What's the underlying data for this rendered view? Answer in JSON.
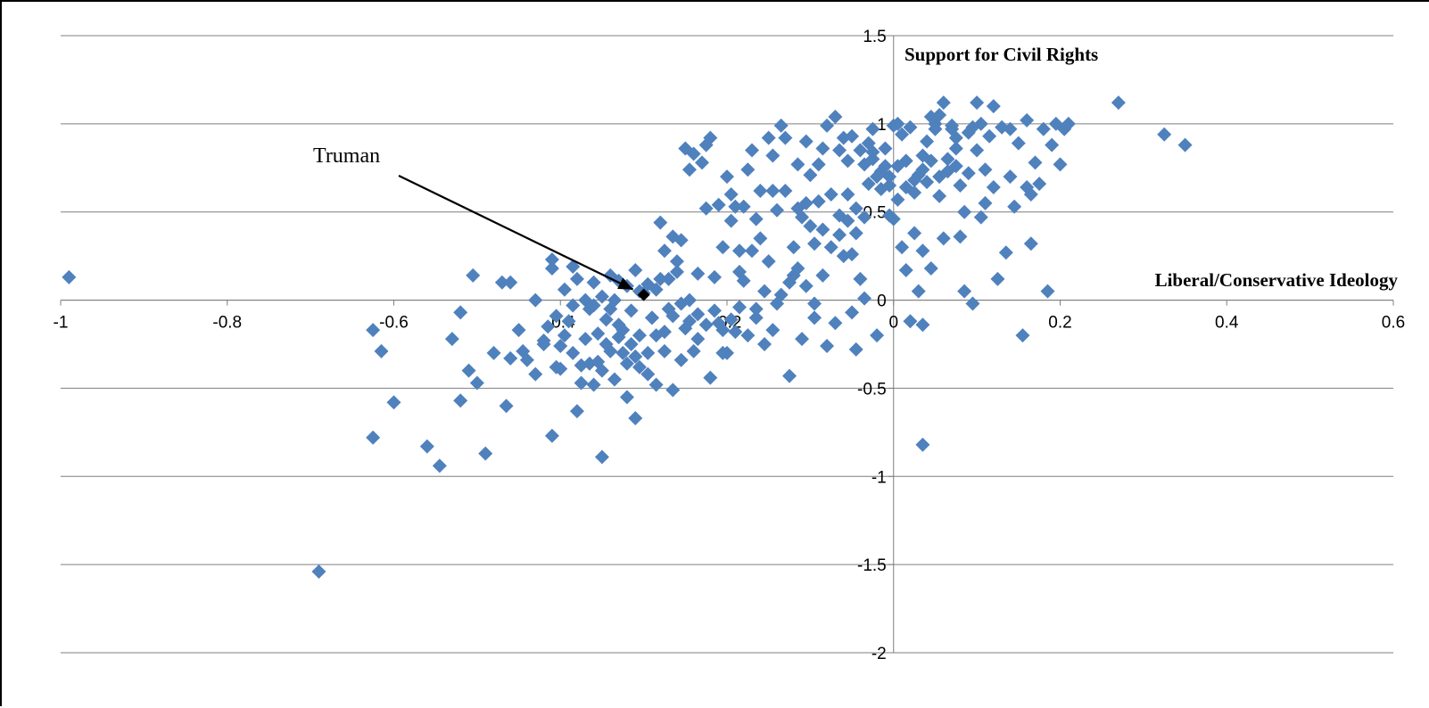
{
  "chart_data": {
    "type": "scatter",
    "title": "",
    "xlabel": "Liberal/Conservative Ideology",
    "ylabel": "Support for Civil Rights",
    "xlim": [
      -1,
      0.6
    ],
    "ylim": [
      -2,
      1.5
    ],
    "x_ticks": [
      "-1",
      "-0.8",
      "-0.6",
      "-0.4",
      "-0.2",
      "0",
      "0.2",
      "0.4",
      "0.6"
    ],
    "y_ticks": [
      "1.5",
      "1",
      "0.5",
      "0",
      "-0.5",
      "-1",
      "-1.5",
      "-2"
    ],
    "grid": "horizontal",
    "colors": {
      "points": "#4f81bd",
      "highlight": "#000000"
    },
    "highlight": {
      "label": "Truman",
      "x": -0.3,
      "y": 0.03
    },
    "points": [
      [
        -0.99,
        0.13
      ],
      [
        -0.69,
        -1.54
      ],
      [
        -0.625,
        -0.78
      ],
      [
        -0.625,
        -0.17
      ],
      [
        -0.615,
        -0.29
      ],
      [
        -0.6,
        -0.58
      ],
      [
        -0.56,
        -0.83
      ],
      [
        -0.545,
        -0.94
      ],
      [
        -0.53,
        -0.22
      ],
      [
        -0.52,
        -0.57
      ],
      [
        -0.52,
        -0.07
      ],
      [
        -0.505,
        0.14
      ],
      [
        -0.51,
        -0.4
      ],
      [
        -0.5,
        -0.47
      ],
      [
        -0.49,
        -0.87
      ],
      [
        -0.465,
        -0.6
      ],
      [
        -0.46,
        -0.33
      ],
      [
        -0.445,
        -0.29
      ],
      [
        -0.43,
        -0.42
      ],
      [
        -0.42,
        -0.23
      ],
      [
        -0.41,
        -0.77
      ],
      [
        -0.41,
        0.23
      ],
      [
        -0.405,
        -0.38
      ],
      [
        -0.4,
        -0.39
      ],
      [
        -0.385,
        0.19
      ],
      [
        -0.38,
        -0.63
      ],
      [
        -0.375,
        -0.47
      ],
      [
        -0.37,
        -0.22
      ],
      [
        -0.365,
        -0.05
      ],
      [
        -0.36,
        0.1
      ],
      [
        -0.355,
        -0.35
      ],
      [
        -0.35,
        -0.89
      ],
      [
        -0.345,
        -0.25
      ],
      [
        -0.34,
        0.14
      ],
      [
        -0.335,
        0.0
      ],
      [
        -0.33,
        -0.14
      ],
      [
        -0.325,
        -0.3
      ],
      [
        -0.32,
        -0.36
      ],
      [
        -0.31,
        -0.67
      ],
      [
        -0.305,
        -0.2
      ],
      [
        -0.3,
        0.04
      ],
      [
        -0.295,
        -0.42
      ],
      [
        -0.29,
        -0.1
      ],
      [
        -0.285,
        -0.48
      ],
      [
        -0.28,
        0.12
      ],
      [
        -0.275,
        -0.29
      ],
      [
        -0.27,
        -0.05
      ],
      [
        -0.265,
        -0.51
      ],
      [
        -0.26,
        0.16
      ],
      [
        -0.255,
        -0.34
      ],
      [
        -0.25,
        -0.16
      ],
      [
        -0.245,
        0.0
      ],
      [
        -0.24,
        -0.29
      ],
      [
        -0.235,
        -0.08
      ],
      [
        -0.23,
        0.78
      ],
      [
        -0.225,
        0.88
      ],
      [
        -0.22,
        -0.44
      ],
      [
        -0.215,
        0.13
      ],
      [
        -0.21,
        -0.13
      ],
      [
        -0.205,
        -0.3
      ],
      [
        -0.2,
        -0.3
      ],
      [
        -0.195,
        0.45
      ],
      [
        -0.19,
        -0.18
      ],
      [
        -0.185,
        0.28
      ],
      [
        -0.18,
        0.11
      ],
      [
        -0.175,
        0.74
      ],
      [
        -0.17,
        0.85
      ],
      [
        -0.165,
        -0.05
      ],
      [
        -0.16,
        0.35
      ],
      [
        -0.155,
        -0.25
      ],
      [
        -0.15,
        0.22
      ],
      [
        -0.145,
        0.82
      ],
      [
        -0.14,
        -0.02
      ],
      [
        -0.13,
        0.92
      ],
      [
        -0.125,
        -0.43
      ],
      [
        -0.12,
        0.14
      ],
      [
        -0.115,
        0.52
      ],
      [
        -0.11,
        -0.22
      ],
      [
        -0.105,
        0.55
      ],
      [
        -0.1,
        0.71
      ],
      [
        -0.095,
        -0.02
      ],
      [
        -0.09,
        0.56
      ],
      [
        -0.085,
        0.14
      ],
      [
        -0.08,
        -0.26
      ],
      [
        -0.075,
        0.3
      ],
      [
        -0.07,
        1.04
      ],
      [
        -0.065,
        0.48
      ],
      [
        -0.06,
        0.92
      ],
      [
        -0.055,
        0.6
      ],
      [
        -0.05,
        0.26
      ],
      [
        -0.045,
        -0.28
      ],
      [
        -0.04,
        0.85
      ],
      [
        -0.035,
        0.01
      ],
      [
        -0.03,
        0.66
      ],
      [
        -0.025,
        0.97
      ],
      [
        -0.02,
        -0.2
      ],
      [
        -0.015,
        0.63
      ],
      [
        -0.01,
        0.76
      ],
      [
        -0.005,
        0.48
      ],
      [
        0.0,
        0.99
      ],
      [
        0.005,
        0.57
      ],
      [
        0.01,
        0.3
      ],
      [
        0.015,
        0.17
      ],
      [
        0.02,
        0.98
      ],
      [
        0.025,
        0.61
      ],
      [
        0.03,
        0.05
      ],
      [
        0.035,
        0.82
      ],
      [
        0.04,
        0.9
      ],
      [
        0.045,
        0.18
      ],
      [
        0.05,
        1.0
      ],
      [
        0.055,
        0.59
      ],
      [
        0.06,
        0.35
      ],
      [
        0.065,
        0.73
      ],
      [
        0.07,
        0.99
      ],
      [
        0.075,
        0.86
      ],
      [
        0.08,
        0.65
      ],
      [
        0.085,
        0.05
      ],
      [
        0.09,
        0.95
      ],
      [
        0.095,
        -0.02
      ],
      [
        0.1,
        0.85
      ],
      [
        0.105,
        0.47
      ],
      [
        0.11,
        0.74
      ],
      [
        0.115,
        0.93
      ],
      [
        0.12,
        0.64
      ],
      [
        0.125,
        0.12
      ],
      [
        0.13,
        0.98
      ],
      [
        0.135,
        0.27
      ],
      [
        0.14,
        0.7
      ],
      [
        0.145,
        0.53
      ],
      [
        0.15,
        0.89
      ],
      [
        0.155,
        -0.2
      ],
      [
        0.16,
        1.02
      ],
      [
        0.165,
        0.6
      ],
      [
        0.17,
        0.78
      ],
      [
        0.175,
        0.66
      ],
      [
        0.18,
        0.97
      ],
      [
        0.185,
        0.05
      ],
      [
        0.19,
        0.88
      ],
      [
        0.195,
        1.0
      ],
      [
        0.2,
        0.77
      ],
      [
        0.205,
        0.97
      ],
      [
        0.21,
        1.0
      ],
      [
        0.27,
        1.12
      ],
      [
        0.325,
        0.94
      ],
      [
        0.35,
        0.88
      ],
      [
        0.165,
        0.32
      ],
      [
        0.16,
        0.64
      ],
      [
        0.14,
        0.97
      ],
      [
        0.12,
        1.1
      ],
      [
        0.11,
        0.55
      ],
      [
        0.105,
        1.0
      ],
      [
        0.1,
        1.12
      ],
      [
        0.095,
        0.98
      ],
      [
        0.09,
        0.72
      ],
      [
        0.085,
        0.5
      ],
      [
        0.08,
        0.36
      ],
      [
        0.075,
        0.92
      ],
      [
        0.07,
        0.97
      ],
      [
        0.06,
        1.12
      ],
      [
        0.055,
        1.05
      ],
      [
        0.05,
        0.97
      ],
      [
        0.045,
        1.04
      ],
      [
        0.04,
        0.67
      ],
      [
        0.035,
        0.28
      ],
      [
        0.03,
        0.71
      ],
      [
        0.025,
        0.38
      ],
      [
        0.02,
        -0.12
      ],
      [
        0.015,
        0.64
      ],
      [
        0.01,
        0.94
      ],
      [
        0.005,
        1.0
      ],
      [
        0.0,
        0.46
      ],
      [
        -0.005,
        0.65
      ],
      [
        -0.01,
        0.86
      ],
      [
        -0.02,
        0.7
      ],
      [
        -0.025,
        0.8
      ],
      [
        -0.03,
        0.89
      ],
      [
        -0.035,
        0.47
      ],
      [
        -0.04,
        0.12
      ],
      [
        -0.045,
        0.38
      ],
      [
        -0.05,
        0.93
      ],
      [
        -0.055,
        0.79
      ],
      [
        -0.06,
        0.25
      ],
      [
        -0.065,
        0.85
      ],
      [
        -0.075,
        0.6
      ],
      [
        -0.08,
        0.99
      ],
      [
        -0.085,
        0.86
      ],
      [
        -0.09,
        0.77
      ],
      [
        -0.095,
        0.32
      ],
      [
        -0.1,
        0.42
      ],
      [
        -0.105,
        0.9
      ],
      [
        -0.11,
        0.47
      ],
      [
        -0.115,
        0.77
      ],
      [
        -0.12,
        0.3
      ],
      [
        -0.13,
        0.62
      ],
      [
        -0.135,
        0.99
      ],
      [
        -0.14,
        0.51
      ],
      [
        -0.145,
        0.62
      ],
      [
        -0.15,
        0.92
      ],
      [
        -0.16,
        0.62
      ],
      [
        -0.165,
        0.46
      ],
      [
        -0.17,
        0.28
      ],
      [
        -0.18,
        0.53
      ],
      [
        -0.185,
        0.16
      ],
      [
        -0.19,
        0.53
      ],
      [
        -0.195,
        0.6
      ],
      [
        -0.2,
        0.7
      ],
      [
        -0.205,
        0.3
      ],
      [
        -0.21,
        0.54
      ],
      [
        -0.22,
        0.92
      ],
      [
        -0.225,
        0.52
      ],
      [
        -0.235,
        0.15
      ],
      [
        -0.24,
        0.83
      ],
      [
        -0.245,
        0.74
      ],
      [
        -0.25,
        0.86
      ],
      [
        -0.255,
        0.34
      ],
      [
        -0.26,
        0.22
      ],
      [
        -0.265,
        0.36
      ],
      [
        -0.27,
        0.12
      ],
      [
        -0.275,
        0.28
      ],
      [
        -0.28,
        0.44
      ],
      [
        -0.285,
        0.06
      ],
      [
        -0.29,
        -0.1
      ],
      [
        -0.295,
        0.09
      ],
      [
        -0.305,
        0.05
      ],
      [
        -0.31,
        0.17
      ],
      [
        -0.315,
        -0.06
      ],
      [
        -0.32,
        0.08
      ],
      [
        -0.325,
        -0.17
      ],
      [
        -0.33,
        0.11
      ],
      [
        -0.34,
        -0.05
      ],
      [
        -0.345,
        -0.11
      ],
      [
        -0.35,
        0.02
      ],
      [
        -0.355,
        -0.19
      ],
      [
        -0.36,
        -0.03
      ],
      [
        -0.365,
        -0.36
      ],
      [
        -0.37,
        0.0
      ],
      [
        -0.375,
        -0.37
      ],
      [
        -0.38,
        0.12
      ],
      [
        -0.385,
        -0.03
      ],
      [
        -0.39,
        -0.12
      ],
      [
        -0.395,
        0.06
      ],
      [
        -0.4,
        -0.26
      ],
      [
        -0.405,
        -0.09
      ],
      [
        -0.41,
        0.18
      ],
      [
        -0.415,
        -0.15
      ],
      [
        -0.42,
        -0.25
      ],
      [
        -0.43,
        0.0
      ],
      [
        -0.44,
        -0.34
      ],
      [
        -0.45,
        -0.17
      ],
      [
        -0.46,
        0.1
      ],
      [
        -0.47,
        0.1
      ],
      [
        -0.48,
        -0.3
      ],
      [
        -0.385,
        -0.3
      ],
      [
        -0.395,
        -0.2
      ],
      [
        -0.335,
        -0.45
      ],
      [
        -0.315,
        -0.25
      ],
      [
        -0.305,
        -0.38
      ],
      [
        -0.295,
        -0.3
      ],
      [
        -0.285,
        -0.2
      ],
      [
        -0.275,
        -0.18
      ],
      [
        -0.265,
        -0.09
      ],
      [
        -0.255,
        -0.02
      ],
      [
        -0.245,
        -0.12
      ],
      [
        -0.235,
        -0.22
      ],
      [
        -0.225,
        -0.14
      ],
      [
        -0.215,
        -0.06
      ],
      [
        -0.205,
        -0.17
      ],
      [
        -0.195,
        -0.11
      ],
      [
        -0.185,
        -0.04
      ],
      [
        -0.175,
        -0.2
      ],
      [
        -0.165,
        -0.1
      ],
      [
        -0.155,
        0.05
      ],
      [
        -0.145,
        -0.17
      ],
      [
        -0.135,
        0.03
      ],
      [
        -0.125,
        0.1
      ],
      [
        -0.115,
        0.18
      ],
      [
        -0.105,
        0.08
      ],
      [
        -0.095,
        -0.1
      ],
      [
        -0.085,
        0.4
      ],
      [
        -0.065,
        0.37
      ],
      [
        -0.055,
        0.45
      ],
      [
        -0.045,
        0.52
      ],
      [
        -0.035,
        0.77
      ],
      [
        -0.025,
        0.84
      ],
      [
        -0.015,
        0.73
      ],
      [
        -0.005,
        0.7
      ],
      [
        0.005,
        0.76
      ],
      [
        0.015,
        0.79
      ],
      [
        0.025,
        0.68
      ],
      [
        0.035,
        0.74
      ],
      [
        0.045,
        0.79
      ],
      [
        0.055,
        0.7
      ],
      [
        0.065,
        0.8
      ],
      [
        0.075,
        0.76
      ],
      [
        -0.36,
        -0.48
      ],
      [
        -0.35,
        -0.4
      ],
      [
        -0.34,
        -0.29
      ],
      [
        -0.33,
        -0.21
      ],
      [
        -0.32,
        -0.55
      ],
      [
        -0.31,
        -0.32
      ],
      [
        0.035,
        -0.82
      ],
      [
        0.035,
        -0.14
      ],
      [
        -0.05,
        -0.07
      ],
      [
        -0.07,
        -0.13
      ]
    ]
  }
}
